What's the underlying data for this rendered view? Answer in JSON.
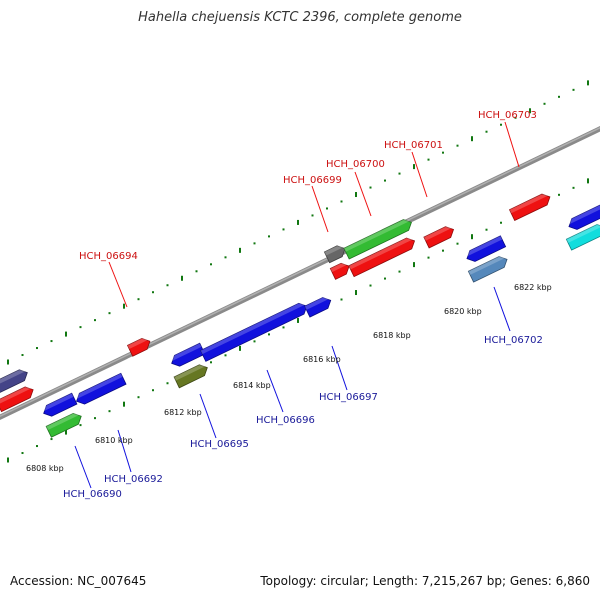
{
  "title": "Hahella chejuensis KCTC 2396, complete genome",
  "footer": {
    "accession": "Accession: NC_007645",
    "topology": "Topology: circular; Length: 7,215,267 bp; Genes: 6,860"
  },
  "scale_labels": [
    "6808 kbp",
    "6810 kbp",
    "6812 kbp",
    "6814 kbp",
    "6816 kbp",
    "6818 kbp",
    "6820 kbp",
    "6822 kbp"
  ],
  "top_gene_labels": [
    "HCH_06694",
    "HCH_06699",
    "HCH_06700",
    "HCH_06701",
    "HCH_06703"
  ],
  "bottom_gene_labels": [
    "HCH_06690",
    "HCH_06692",
    "HCH_06695",
    "HCH_06696",
    "HCH_06697",
    "HCH_06702"
  ],
  "colors": {
    "forward": "#ee1111",
    "reverse": "#1111dd",
    "green": "#33bb33",
    "olive": "#667722",
    "gray": "#666666",
    "steel": "#5588bb",
    "cyan": "#11dddd",
    "navy": "#444488",
    "tick": "#117711"
  }
}
